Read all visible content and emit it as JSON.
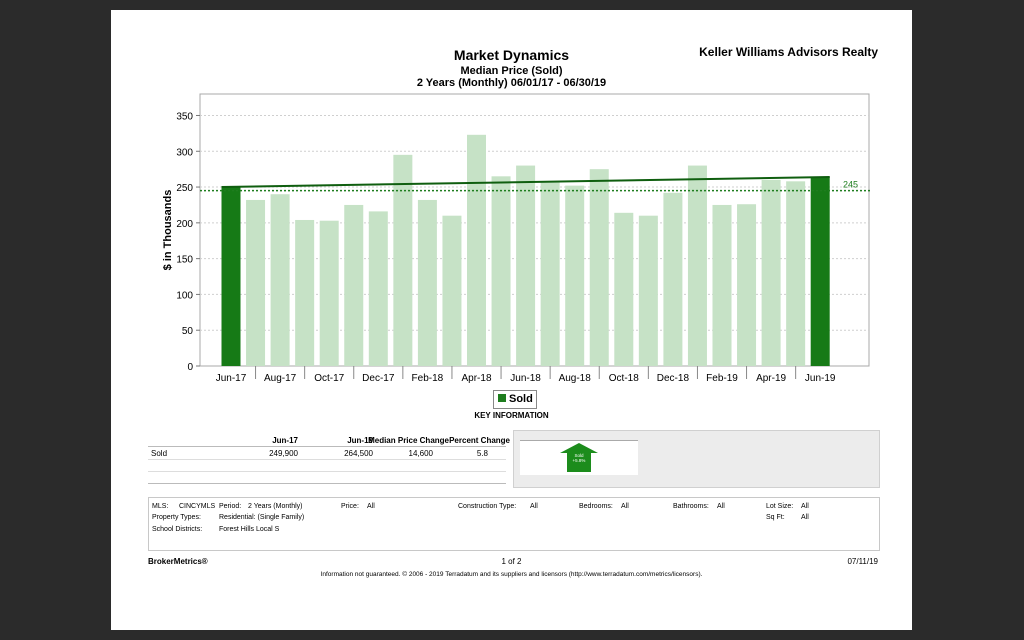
{
  "header": {
    "agency": "Keller Williams Advisors Realty",
    "title": "Market Dynamics",
    "subtitle": "Median Price (Sold)",
    "period": "2 Years (Monthly) 06/01/17 - 06/30/19"
  },
  "chart_data": {
    "type": "bar",
    "ylabel": "$ in Thousands",
    "ylim": [
      0,
      380
    ],
    "yticks": [
      0,
      50,
      100,
      150,
      200,
      250,
      300,
      350
    ],
    "grid": true,
    "categories": [
      "Jun-17",
      "Jul-17",
      "Aug-17",
      "Sep-17",
      "Oct-17",
      "Nov-17",
      "Dec-17",
      "Jan-18",
      "Feb-18",
      "Mar-18",
      "Apr-18",
      "May-18",
      "Jun-18",
      "Jul-18",
      "Aug-18",
      "Sep-18",
      "Oct-18",
      "Nov-18",
      "Dec-18",
      "Jan-19",
      "Feb-19",
      "Mar-19",
      "Apr-19",
      "May-19",
      "Jun-19"
    ],
    "tick_labels": [
      "Jun-17",
      "Aug-17",
      "Oct-17",
      "Dec-17",
      "Feb-18",
      "Apr-18",
      "Jun-18",
      "Aug-18",
      "Oct-18",
      "Dec-18",
      "Feb-19",
      "Apr-19",
      "Jun-19"
    ],
    "series": [
      {
        "name": "Sold",
        "values": [
          249.9,
          232,
          240,
          204,
          203,
          225,
          216,
          295,
          232,
          210,
          323,
          265,
          280,
          258,
          252,
          275,
          214,
          210,
          242,
          280,
          225,
          226,
          260,
          258,
          264.5
        ]
      }
    ],
    "highlight_indices": [
      0,
      24
    ],
    "trend_line": [
      250,
      264
    ],
    "average_line": {
      "value": 245,
      "label": "245"
    },
    "colors": {
      "highlight": "#167a16",
      "bar": "#c6e2c6",
      "trend": "#0f5e0f",
      "average": "#1e7d1e"
    },
    "legend": {
      "label": "Sold",
      "placement": "bottom-center"
    }
  },
  "key_information": {
    "title": "KEY INFORMATION",
    "columns": [
      "Jun-17",
      "Jun-19",
      "Median Price Change",
      "Percent Change"
    ],
    "rows": [
      {
        "label": "Sold",
        "values": [
          "249,900",
          "264,500",
          "14,600",
          "5.8"
        ]
      }
    ],
    "arrow": {
      "line1": "Sold",
      "line2": "+5.8%"
    }
  },
  "filters": {
    "mls_label": "MLS:",
    "mls": "CINCYMLS",
    "period_label": "Period:",
    "period": "2 Years (Monthly)",
    "price_label": "Price:",
    "price": "All",
    "construction_label": "Construction Type:",
    "construction": "All",
    "bedrooms_label": "Bedrooms:",
    "bedrooms": "All",
    "bathrooms_label": "Bathrooms:",
    "bathrooms": "All",
    "lot_label": "Lot Size:",
    "lot": "All",
    "property_label": "Property Types:",
    "property": "Residential: (Single Family)",
    "sqft_label": "Sq Ft:",
    "sqft": "All",
    "school_label": "School Districts:",
    "school": "Forest Hills Local S"
  },
  "footer": {
    "brand": "BrokerMetrics®",
    "page": "1 of 2",
    "date": "07/11/19",
    "disclaimer": "Information not guaranteed.  © 2006 - 2019 Terradatum and its suppliers and licensors (http://www.terradatum.com/metrics/licensors)."
  }
}
